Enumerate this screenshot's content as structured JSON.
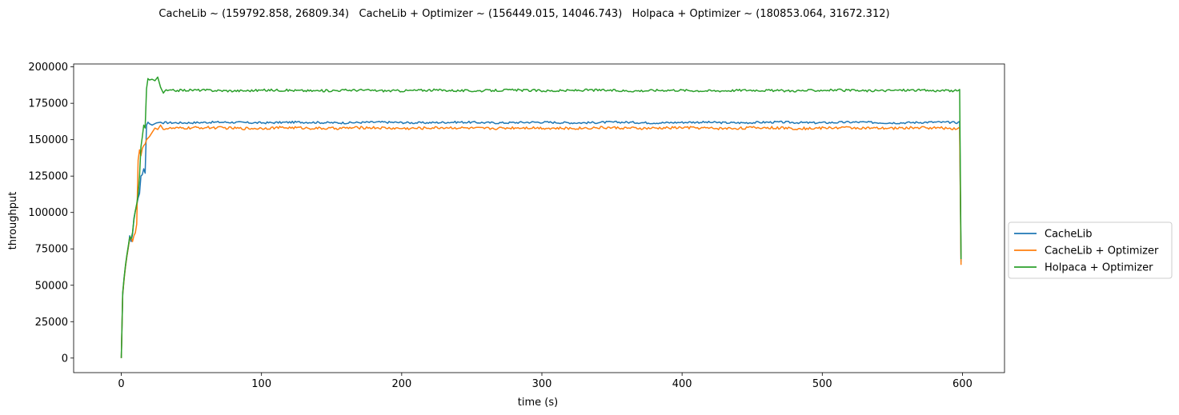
{
  "chart_data": {
    "type": "line",
    "title": "CacheLib ~ (159792.858, 26809.34)   CacheLib + Optimizer ~ (156449.015, 14046.743)   Holpaca + Optimizer ~ (180853.064, 31672.312)",
    "xlabel": "time (s)",
    "ylabel": "throughput",
    "xlim": [
      -34,
      630
    ],
    "ylim": [
      -10000,
      202000
    ],
    "xticks": [
      0,
      100,
      200,
      300,
      400,
      500,
      600
    ],
    "yticks": [
      0,
      25000,
      50000,
      75000,
      100000,
      125000,
      150000,
      175000,
      200000
    ],
    "grid": false,
    "legend_position": "center-right (outside)",
    "series": [
      {
        "name": "CacheLib",
        "color": "#1f77b4",
        "points": [
          [
            0,
            0
          ],
          [
            1,
            43000
          ],
          [
            2,
            55000
          ],
          [
            3,
            63000
          ],
          [
            4,
            70000
          ],
          [
            5,
            76000
          ],
          [
            6,
            84000
          ],
          [
            7,
            80000
          ],
          [
            8,
            85000
          ],
          [
            9,
            96000
          ],
          [
            10,
            101000
          ],
          [
            11,
            105000
          ],
          [
            12,
            110000
          ],
          [
            13,
            113000
          ],
          [
            14,
            125000
          ],
          [
            15,
            126000
          ],
          [
            16,
            130000
          ],
          [
            17,
            127000
          ],
          [
            18,
            160000
          ],
          [
            19,
            162000
          ],
          [
            20,
            161000
          ],
          [
            22,
            160000
          ],
          [
            25,
            161500
          ],
          [
            28,
            162000
          ],
          [
            30,
            161000
          ]
        ],
        "steady": {
          "from": 31,
          "to": 597,
          "base": 161800,
          "amp": 700
        },
        "tail": [
          [
            598,
            162500
          ],
          [
            599,
            66000
          ]
        ]
      },
      {
        "name": "CacheLib + Optimizer",
        "color": "#ff7f0e",
        "points": [
          [
            0,
            0
          ],
          [
            1,
            44000
          ],
          [
            2,
            54000
          ],
          [
            3,
            63000
          ],
          [
            4,
            70000
          ],
          [
            5,
            76000
          ],
          [
            6,
            82000
          ],
          [
            7,
            83000
          ],
          [
            8,
            80000
          ],
          [
            9,
            84000
          ],
          [
            10,
            86000
          ],
          [
            11,
            92000
          ],
          [
            12,
            136000
          ],
          [
            13,
            143000
          ],
          [
            14,
            139000
          ],
          [
            15,
            144000
          ],
          [
            16,
            146000
          ],
          [
            17,
            147000
          ],
          [
            18,
            150000
          ],
          [
            20,
            152000
          ],
          [
            22,
            155000
          ],
          [
            24,
            158000
          ],
          [
            26,
            157000
          ],
          [
            28,
            160000
          ],
          [
            30,
            157000
          ]
        ],
        "steady": {
          "from": 31,
          "to": 597,
          "base": 158000,
          "amp": 900
        },
        "tail": [
          [
            598,
            158500
          ],
          [
            599,
            64000
          ]
        ]
      },
      {
        "name": "Holpaca + Optimizer",
        "color": "#2ca02c",
        "points": [
          [
            0,
            0
          ],
          [
            1,
            45000
          ],
          [
            2,
            55000
          ],
          [
            3,
            64000
          ],
          [
            4,
            71000
          ],
          [
            5,
            77000
          ],
          [
            6,
            83000
          ],
          [
            7,
            82000
          ],
          [
            8,
            86000
          ],
          [
            9,
            95000
          ],
          [
            10,
            101000
          ],
          [
            11,
            106000
          ],
          [
            12,
            112000
          ],
          [
            13,
            125000
          ],
          [
            14,
            145000
          ],
          [
            15,
            152000
          ],
          [
            16,
            160000
          ],
          [
            17,
            158000
          ],
          [
            18,
            185000
          ],
          [
            19,
            192000
          ],
          [
            20,
            191000
          ],
          [
            22,
            191500
          ],
          [
            24,
            190500
          ],
          [
            26,
            193000
          ],
          [
            28,
            186000
          ],
          [
            30,
            182000
          ]
        ],
        "steady": {
          "from": 31,
          "to": 597,
          "base": 183800,
          "amp": 800
        },
        "tail": [
          [
            598,
            184500
          ],
          [
            599,
            68000
          ]
        ]
      }
    ]
  }
}
